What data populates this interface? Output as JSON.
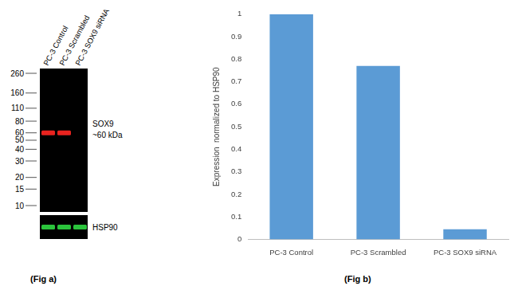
{
  "chart_data": {
    "type": "bar",
    "title": "(Fig b)",
    "categories": [
      "PC-3 Control",
      "PC-3 Scrambled",
      "PC-3 SOX9 siRNA"
    ],
    "values": [
      1,
      0.77,
      0.045
    ],
    "color": "#5b9bd5",
    "ylabel": "Expression  normalized to HSP90",
    "ylim": [
      0,
      1
    ],
    "yticks": [
      0,
      0.1,
      0.2,
      0.3,
      0.4,
      0.5,
      0.6,
      0.7,
      0.8,
      0.9,
      1
    ],
    "grid": false
  },
  "blot": {
    "title": "(Fig a)",
    "lanes": [
      "PC-3 Control",
      "PC-3 Scrambled",
      "PC-3 SOX9 siRNA"
    ],
    "markers": [
      260,
      160,
      110,
      80,
      60,
      50,
      40,
      30,
      20,
      15,
      10
    ],
    "target": {
      "label": "SOX9",
      "size_label": "~60 kDa",
      "kda": 60,
      "present": [
        true,
        true,
        false
      ],
      "color": "#e8231f"
    },
    "loading_control": {
      "label": "HSP90",
      "present": [
        true,
        true,
        true
      ],
      "color": "#2bc43c"
    }
  }
}
